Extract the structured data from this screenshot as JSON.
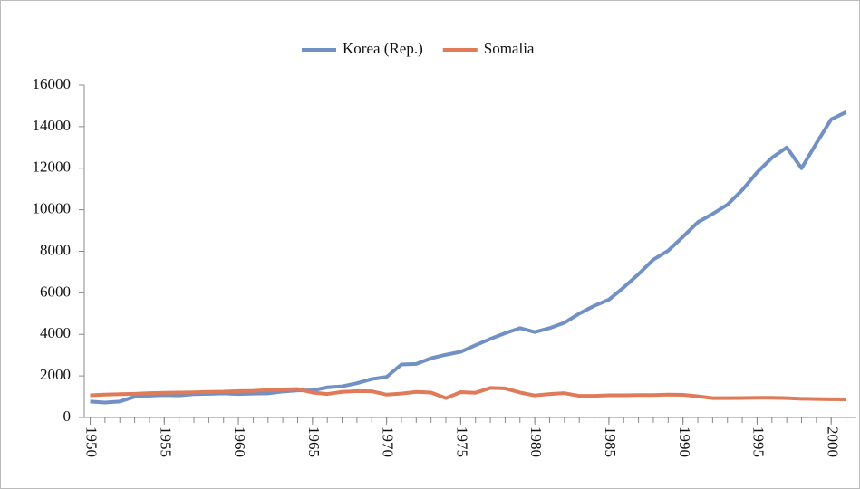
{
  "chart_data": {
    "type": "line",
    "x": [
      1950,
      1951,
      1952,
      1953,
      1954,
      1955,
      1956,
      1957,
      1958,
      1959,
      1960,
      1961,
      1962,
      1963,
      1964,
      1965,
      1966,
      1967,
      1968,
      1969,
      1970,
      1971,
      1972,
      1973,
      1974,
      1975,
      1976,
      1977,
      1978,
      1979,
      1980,
      1981,
      1982,
      1983,
      1984,
      1985,
      1986,
      1987,
      1988,
      1989,
      1990,
      1991,
      1992,
      1993,
      1994,
      1995,
      1996,
      1997,
      1998,
      1999,
      2000,
      2001
    ],
    "series": [
      {
        "name": "Korea (Rep.)",
        "color": "#7190c4",
        "values": [
          770,
          720,
          770,
          1000,
          1050,
          1080,
          1060,
          1120,
          1140,
          1160,
          1130,
          1150,
          1160,
          1250,
          1300,
          1300,
          1450,
          1500,
          1650,
          1850,
          1950,
          2550,
          2580,
          2850,
          3020,
          3160,
          3480,
          3780,
          4060,
          4300,
          4110,
          4300,
          4560,
          5000,
          5370,
          5670,
          6260,
          6900,
          7600,
          8030,
          8700,
          9400,
          9800,
          10250,
          10950,
          11800,
          12500,
          13000,
          12000,
          13200,
          14350,
          14700
        ]
      },
      {
        "name": "Somalia",
        "color": "#e07b5a",
        "values": [
          1070,
          1100,
          1120,
          1140,
          1170,
          1190,
          1200,
          1210,
          1230,
          1240,
          1270,
          1280,
          1320,
          1350,
          1370,
          1200,
          1130,
          1230,
          1270,
          1260,
          1100,
          1150,
          1230,
          1200,
          930,
          1220,
          1190,
          1420,
          1400,
          1200,
          1060,
          1130,
          1170,
          1040,
          1040,
          1070,
          1070,
          1080,
          1080,
          1100,
          1090,
          1020,
          930,
          930,
          940,
          950,
          950,
          930,
          900,
          890,
          880,
          870
        ]
      }
    ],
    "xlim": [
      1949.6,
      2001.7
    ],
    "xticks": [
      1950,
      1955,
      1960,
      1965,
      1970,
      1975,
      1980,
      1985,
      1990,
      1995,
      2000
    ],
    "ylim": [
      0,
      16000
    ],
    "yticks": [
      0,
      2000,
      4000,
      6000,
      8000,
      10000,
      12000,
      14000,
      16000
    ],
    "grid": false,
    "legend": "top"
  }
}
